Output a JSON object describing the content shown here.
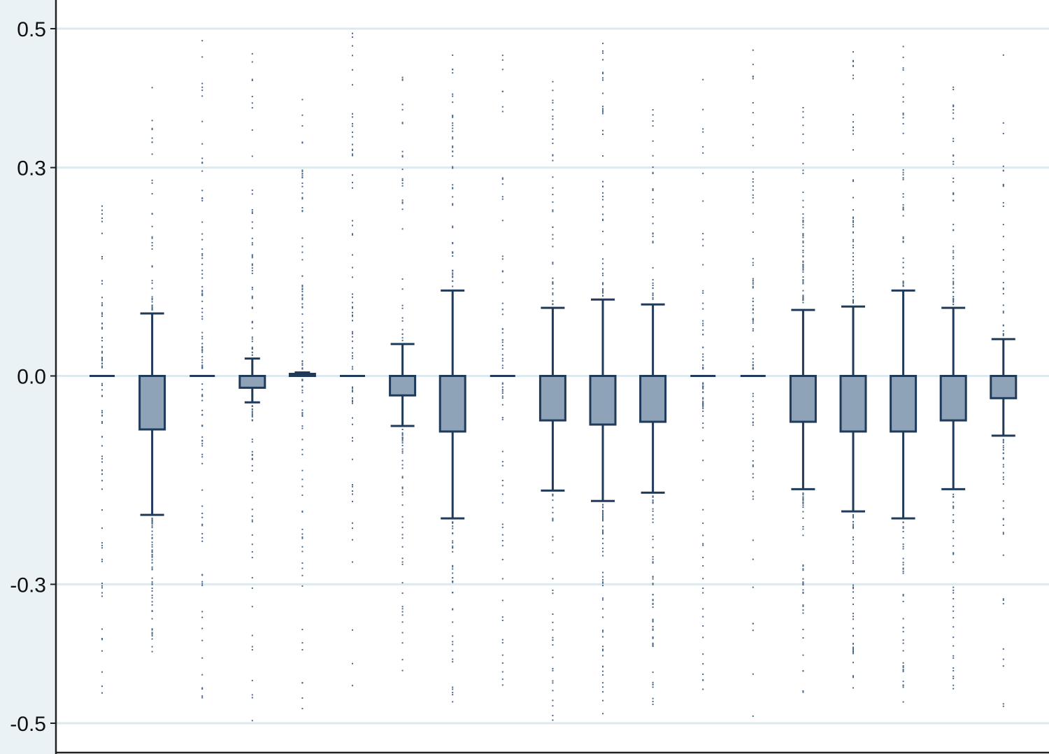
{
  "chart_data": {
    "type": "box",
    "title": "",
    "xlabel": "",
    "ylabel": "",
    "ylim": [
      -0.55,
      0.55
    ],
    "y_ticks": [
      0.5,
      0.3,
      0.0,
      -0.3,
      -0.5
    ],
    "y_tick_labels": [
      "0.5",
      "0.3",
      "0.0",
      "-0.3",
      "-0.5"
    ],
    "grid": true,
    "colors": {
      "box_fill": "#8fa3b8",
      "box_stroke": "#1f3a5a",
      "grid": "#dde9ee",
      "outlier": "#4a6888",
      "margin_band": "#eaf2f5",
      "axis": "#222222"
    },
    "boxes": [
      {
        "q1": 0,
        "median": 0,
        "q3": 0,
        "whisker_low": 0,
        "whisker_high": 0,
        "outlier_min": -0.48,
        "outlier_max": 0.25
      },
      {
        "q1": -0.077,
        "median": 0,
        "q3": 0,
        "whisker_low": -0.2,
        "whisker_high": 0.09,
        "outlier_min": -0.4,
        "outlier_max": 0.42
      },
      {
        "q1": 0,
        "median": 0,
        "q3": 0,
        "whisker_low": 0,
        "whisker_high": 0,
        "outlier_min": -0.49,
        "outlier_max": 0.49
      },
      {
        "q1": -0.017,
        "median": 0,
        "q3": 0,
        "whisker_low": -0.038,
        "whisker_high": 0.025,
        "outlier_min": -0.5,
        "outlier_max": 0.48
      },
      {
        "q1": 0,
        "median": 0,
        "q3": 0.003,
        "whisker_low": 0,
        "whisker_high": 0.005,
        "outlier_min": -0.48,
        "outlier_max": 0.42
      },
      {
        "q1": 0,
        "median": 0,
        "q3": 0,
        "whisker_low": 0,
        "whisker_high": 0,
        "outlier_min": -0.48,
        "outlier_max": 0.5
      },
      {
        "q1": -0.028,
        "median": 0,
        "q3": 0,
        "whisker_low": -0.072,
        "whisker_high": 0.046,
        "outlier_min": -0.44,
        "outlier_max": 0.44
      },
      {
        "q1": -0.08,
        "median": 0,
        "q3": 0,
        "whisker_low": -0.205,
        "whisker_high": 0.123,
        "outlier_min": -0.48,
        "outlier_max": 0.48
      },
      {
        "q1": 0,
        "median": 0,
        "q3": 0,
        "whisker_low": 0,
        "whisker_high": 0,
        "outlier_min": -0.47,
        "outlier_max": 0.47
      },
      {
        "q1": -0.064,
        "median": 0,
        "q3": 0,
        "whisker_low": -0.165,
        "whisker_high": 0.098,
        "outlier_min": -0.5,
        "outlier_max": 0.43
      },
      {
        "q1": -0.07,
        "median": 0,
        "q3": 0,
        "whisker_low": -0.18,
        "whisker_high": 0.11,
        "outlier_min": -0.5,
        "outlier_max": 0.49
      },
      {
        "q1": -0.066,
        "median": 0,
        "q3": 0,
        "whisker_low": -0.168,
        "whisker_high": 0.103,
        "outlier_min": -0.48,
        "outlier_max": 0.39
      },
      {
        "q1": 0,
        "median": 0,
        "q3": 0,
        "whisker_low": 0,
        "whisker_high": 0,
        "outlier_min": -0.46,
        "outlier_max": 0.44
      },
      {
        "q1": 0,
        "median": 0,
        "q3": 0,
        "whisker_low": 0,
        "whisker_high": 0,
        "outlier_min": -0.5,
        "outlier_max": 0.48
      },
      {
        "q1": -0.066,
        "median": 0,
        "q3": 0,
        "whisker_low": -0.163,
        "whisker_high": 0.095,
        "outlier_min": -0.46,
        "outlier_max": 0.39
      },
      {
        "q1": -0.08,
        "median": 0,
        "q3": 0,
        "whisker_low": -0.195,
        "whisker_high": 0.1,
        "outlier_min": -0.49,
        "outlier_max": 0.47
      },
      {
        "q1": -0.08,
        "median": 0,
        "q3": 0,
        "whisker_low": -0.205,
        "whisker_high": 0.123,
        "outlier_min": -0.47,
        "outlier_max": 0.49
      },
      {
        "q1": -0.064,
        "median": 0,
        "q3": 0,
        "whisker_low": -0.163,
        "whisker_high": 0.098,
        "outlier_min": -0.47,
        "outlier_max": 0.42
      },
      {
        "q1": -0.032,
        "median": 0,
        "q3": 0,
        "whisker_low": -0.086,
        "whisker_high": 0.053,
        "outlier_min": -0.5,
        "outlier_max": 0.47
      }
    ]
  }
}
